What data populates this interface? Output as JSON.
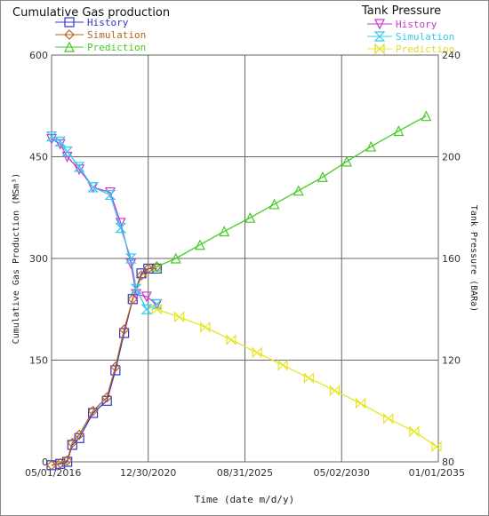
{
  "chart_data": {
    "type": "line",
    "left_panel": {
      "title": "Cumulative Gas production",
      "ylabel": "Cumulative Gas Production (MSm³)",
      "ylim": [
        0,
        600
      ],
      "yticks": [
        "0",
        "150",
        "300",
        "450",
        "600"
      ],
      "legend": [
        {
          "name": "History",
          "color": "#3333cc",
          "marker": "square"
        },
        {
          "name": "Simulation",
          "color": "#b5651d",
          "marker": "diamond"
        },
        {
          "name": "Prediction",
          "color": "#44cc22",
          "marker": "triangle-up"
        }
      ]
    },
    "right_panel": {
      "title": "Tank Pressure",
      "ylabel": "Tank Pressure (BARa)",
      "ylim": [
        80,
        240
      ],
      "yticks": [
        "80",
        "120",
        "160",
        "200",
        "240"
      ],
      "legend": [
        {
          "name": "History",
          "color": "#cc33cc",
          "marker": "triangle-down"
        },
        {
          "name": "Simulation",
          "color": "#33ccee",
          "marker": "hourglass"
        },
        {
          "name": "Prediction",
          "color": "#eeee22",
          "marker": "bowtie"
        }
      ]
    },
    "xlabel": "Time (date m/d/y)",
    "xticks": [
      "05/01/2016",
      "12/30/2020",
      "08/31/2025",
      "05/02/2030",
      "01/01/2035"
    ],
    "xlim": [
      "05/01/2016",
      "01/01/2035"
    ],
    "grid": true,
    "series": [
      {
        "name": "History",
        "axis": "left",
        "color": "#3333cc",
        "marker": "square",
        "x": [
          "2016-05-01",
          "2016-10-01",
          "2017-02-01",
          "2017-05-01",
          "2017-09-01",
          "2018-05-01",
          "2019-01-01",
          "2019-06-01",
          "2019-11-01",
          "2020-04-01",
          "2020-09-01",
          "2021-01-01",
          "2021-06-01"
        ],
        "y": [
          -5,
          -3,
          0,
          25,
          35,
          72,
          90,
          135,
          190,
          240,
          278,
          285,
          285
        ]
      },
      {
        "name": "Simulation",
        "axis": "left",
        "color": "#b5651d",
        "marker": "diamond",
        "x": [
          "2016-05-01",
          "2016-10-01",
          "2017-02-01",
          "2017-05-01",
          "2017-09-01",
          "2018-05-01",
          "2019-01-01",
          "2019-06-01",
          "2019-11-01",
          "2020-04-01",
          "2020-09-01",
          "2021-01-01",
          "2021-06-01"
        ],
        "y": [
          -5,
          -2,
          2,
          28,
          40,
          75,
          95,
          140,
          195,
          240,
          275,
          285,
          288
        ]
      },
      {
        "name": "Prediction",
        "axis": "left",
        "color": "#44cc22",
        "marker": "triangle-up",
        "x": [
          "2021-06-01",
          "2022-05-01",
          "2023-07-01",
          "2024-09-01",
          "2025-12-01",
          "2027-02-01",
          "2028-04-01",
          "2029-06-01",
          "2030-08-01",
          "2031-10-01",
          "2033-02-01",
          "2034-06-01"
        ],
        "y": [
          288,
          300,
          320,
          340,
          360,
          380,
          400,
          420,
          443,
          465,
          488,
          510
        ]
      },
      {
        "name": "History",
        "axis": "right",
        "color": "#cc33cc",
        "marker": "triangle-down",
        "x": [
          "2016-05-01",
          "2016-10-01",
          "2017-02-01",
          "2017-09-01",
          "2018-05-01",
          "2019-03-01",
          "2019-09-01",
          "2020-03-01",
          "2020-06-01",
          "2020-12-01",
          "2021-06-01"
        ],
        "y": [
          207,
          205,
          200,
          195,
          188,
          186,
          174,
          158,
          146,
          145,
          142
        ]
      },
      {
        "name": "Simulation",
        "axis": "right",
        "color": "#33ccee",
        "marker": "hourglass",
        "x": [
          "2016-05-01",
          "2016-10-01",
          "2017-02-01",
          "2017-09-01",
          "2018-05-01",
          "2019-03-01",
          "2019-09-01",
          "2020-03-01",
          "2020-06-01",
          "2020-12-01",
          "2021-06-01"
        ],
        "y": [
          208,
          206,
          202,
          196,
          188,
          185,
          172,
          160,
          148,
          140,
          142
        ]
      },
      {
        "name": "Prediction",
        "axis": "right",
        "color": "#eeee22",
        "marker": "bowtie",
        "x": [
          "2021-06-01",
          "2022-07-01",
          "2023-10-01",
          "2025-01-01",
          "2026-04-01",
          "2027-07-01",
          "2028-10-01",
          "2030-01-01",
          "2031-04-01",
          "2032-08-01",
          "2033-11-01",
          "2034-12-01"
        ],
        "y": [
          140,
          137,
          133,
          128,
          123,
          118,
          113,
          108,
          103,
          97,
          92,
          86
        ]
      }
    ]
  }
}
